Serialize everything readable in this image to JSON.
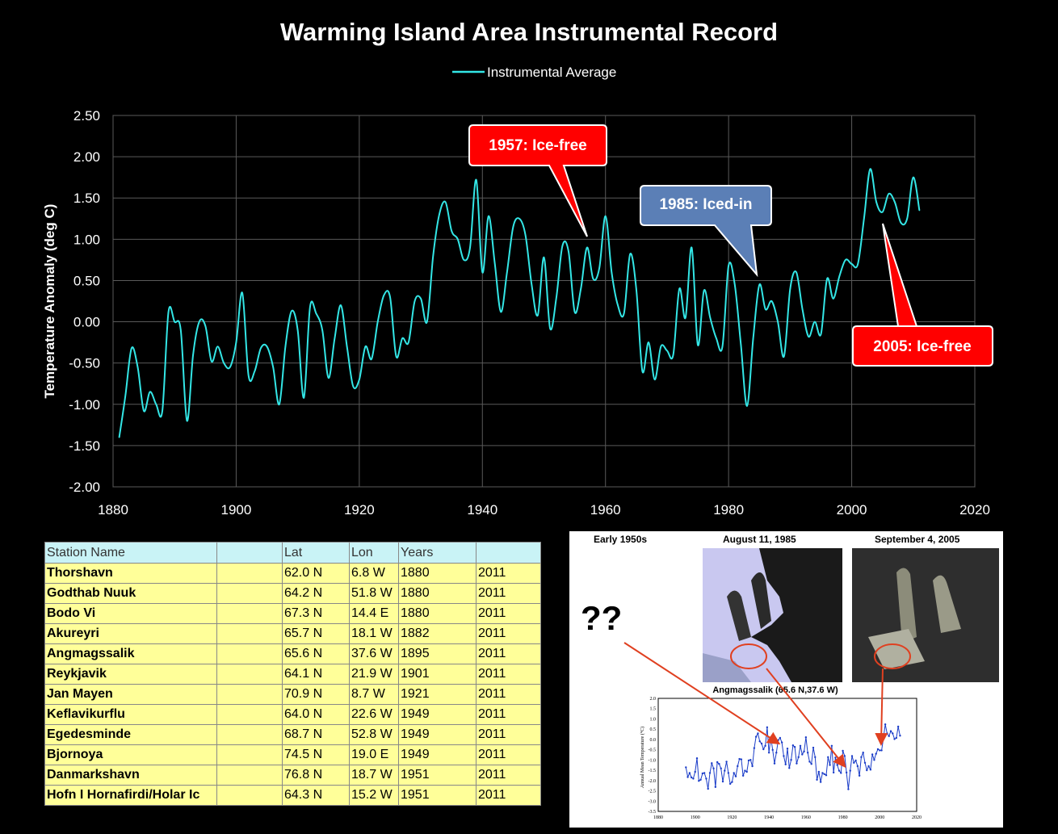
{
  "chart_data": {
    "type": "line",
    "title": "Warming Island Area Instrumental Record",
    "ylabel": "Temperature Anomaly (deg C)",
    "xlabel": "",
    "xlim": [
      1880,
      2020
    ],
    "ylim": [
      -2.0,
      2.5
    ],
    "x_ticks": [
      "1880",
      "1900",
      "1920",
      "1940",
      "1960",
      "1980",
      "2000",
      "2020"
    ],
    "y_ticks": [
      "2.50",
      "2.00",
      "1.50",
      "1.00",
      "0.50",
      "0.00",
      "-0.50",
      "-1.00",
      "-1.50",
      "-2.00"
    ],
    "grid": true,
    "legend_position": "top",
    "series": [
      {
        "name": "Instrumental Average",
        "color": "#33e6e6",
        "x": [
          1881,
          1882,
          1883,
          1884,
          1885,
          1886,
          1887,
          1888,
          1889,
          1890,
          1891,
          1892,
          1893,
          1894,
          1895,
          1896,
          1897,
          1898,
          1899,
          1900,
          1901,
          1902,
          1903,
          1904,
          1905,
          1906,
          1907,
          1908,
          1909,
          1910,
          1911,
          1912,
          1913,
          1914,
          1915,
          1916,
          1917,
          1918,
          1919,
          1920,
          1921,
          1922,
          1923,
          1924,
          1925,
          1926,
          1927,
          1928,
          1929,
          1930,
          1931,
          1932,
          1933,
          1934,
          1935,
          1936,
          1937,
          1938,
          1939,
          1940,
          1941,
          1942,
          1943,
          1944,
          1945,
          1946,
          1947,
          1948,
          1949,
          1950,
          1951,
          1952,
          1953,
          1954,
          1955,
          1956,
          1957,
          1958,
          1959,
          1960,
          1961,
          1962,
          1963,
          1964,
          1965,
          1966,
          1967,
          1968,
          1969,
          1970,
          1971,
          1972,
          1973,
          1974,
          1975,
          1976,
          1977,
          1978,
          1979,
          1980,
          1981,
          1982,
          1983,
          1984,
          1985,
          1986,
          1987,
          1988,
          1989,
          1990,
          1991,
          1992,
          1993,
          1994,
          1995,
          1996,
          1997,
          1998,
          1999,
          2000,
          2001,
          2002,
          2003,
          2004,
          2005,
          2006,
          2007,
          2008,
          2009,
          2010,
          2011
        ],
        "values": [
          -1.4,
          -0.9,
          -0.32,
          -0.55,
          -1.08,
          -0.85,
          -1.0,
          -1.08,
          0.12,
          0.0,
          -0.1,
          -1.2,
          -0.4,
          0.0,
          -0.05,
          -0.48,
          -0.3,
          -0.5,
          -0.55,
          -0.25,
          0.35,
          -0.65,
          -0.6,
          -0.32,
          -0.3,
          -0.55,
          -1.0,
          -0.3,
          0.13,
          -0.1,
          -0.92,
          0.18,
          0.1,
          -0.1,
          -0.68,
          -0.2,
          0.2,
          -0.3,
          -0.78,
          -0.7,
          -0.3,
          -0.45,
          0.0,
          0.32,
          0.3,
          -0.42,
          -0.2,
          -0.25,
          0.25,
          0.28,
          0.0,
          0.8,
          1.3,
          1.45,
          1.1,
          1.0,
          0.75,
          0.9,
          1.72,
          0.6,
          1.28,
          0.72,
          0.12,
          0.6,
          1.15,
          1.25,
          1.05,
          0.45,
          0.08,
          0.78,
          -0.08,
          0.28,
          0.92,
          0.85,
          0.12,
          0.4,
          0.9,
          0.52,
          0.65,
          1.28,
          0.6,
          0.2,
          0.1,
          0.82,
          0.4,
          -0.6,
          -0.25,
          -0.7,
          -0.3,
          -0.35,
          -0.4,
          0.4,
          0.05,
          0.9,
          -0.28,
          0.38,
          0.05,
          -0.2,
          -0.3,
          0.68,
          0.45,
          -0.28,
          -1.02,
          -0.2,
          0.45,
          0.15,
          0.25,
          0.0,
          -0.42,
          0.4,
          0.6,
          0.15,
          -0.18,
          0.0,
          -0.15,
          0.52,
          0.28,
          0.55,
          0.75,
          0.7,
          0.7,
          1.25,
          1.85,
          1.45,
          1.33,
          1.55,
          1.45,
          1.2,
          1.25,
          1.75,
          1.35
        ]
      }
    ],
    "annotations": [
      {
        "text": "1957: Ice-free",
        "year": 1957,
        "value": 1.02,
        "color": "#ff0000"
      },
      {
        "text": "1985: Iced-in",
        "year": 1985,
        "value": 0.55,
        "color": "#5b7fb6"
      },
      {
        "text": "2005: Ice-free",
        "year": 2005,
        "value": 1.22,
        "color": "#ff0000"
      }
    ]
  },
  "station_table": {
    "headers": [
      "Station Name",
      "",
      "Lat",
      "Lon",
      "Years",
      ""
    ],
    "rows": [
      [
        "Thorshavn",
        "",
        "62.0 N",
        "6.8 W",
        "1880",
        "2011"
      ],
      [
        "Godthab Nuuk",
        "",
        "64.2 N",
        "51.8 W",
        "1880",
        "2011"
      ],
      [
        "Bodo Vi",
        "",
        "67.3 N",
        "14.4 E",
        "1880",
        "2011"
      ],
      [
        "Akureyri",
        "",
        "65.7 N",
        "18.1 W",
        "1882",
        "2011"
      ],
      [
        "Angmagssalik",
        "",
        "65.6 N",
        "37.6 W",
        "1895",
        "2011"
      ],
      [
        "Reykjavik",
        "",
        "64.1 N",
        "21.9 W",
        "1901",
        "2011"
      ],
      [
        "Jan Mayen",
        "",
        "70.9 N",
        "8.7 W",
        "1921",
        "2011"
      ],
      [
        "Keflavikurflu",
        "",
        "64.0 N",
        "22.6 W",
        "1949",
        "2011"
      ],
      [
        "Egedesminde",
        "",
        "68.7 N",
        "52.8 W",
        "1949",
        "2011"
      ],
      [
        "Bjornoya",
        "",
        "74.5 N",
        "19.0 E",
        "1949",
        "2011"
      ],
      [
        "Danmarkshavn",
        "",
        "76.8 N",
        "18.7 W",
        "1951",
        "2011"
      ],
      [
        "Hofn I Hornafirdi/Holar Ic",
        "",
        "64.3 N",
        "15.2 W",
        "1951",
        "2011"
      ]
    ]
  },
  "inset": {
    "titles": [
      "Early 1950s",
      "August 11, 1985",
      "September 4, 2005"
    ],
    "unknown_marker": "??",
    "small_chart_title": "Angmagssalik (65.6 N,37.6 W)",
    "small_chart_ylabel": "Annual Mean Temperature (°C)",
    "small_chart_x_ticks": [
      "1880",
      "1900",
      "1920",
      "1940",
      "1960",
      "1980",
      "2000",
      "2020"
    ],
    "small_chart_y_ticks": [
      "2.0",
      "1.5",
      "1.0",
      "0.5",
      "0.0",
      "-0.5",
      "-1.0",
      "-1.5",
      "-2.0",
      "-2.5",
      "-3.0",
      "-3.5"
    ]
  }
}
